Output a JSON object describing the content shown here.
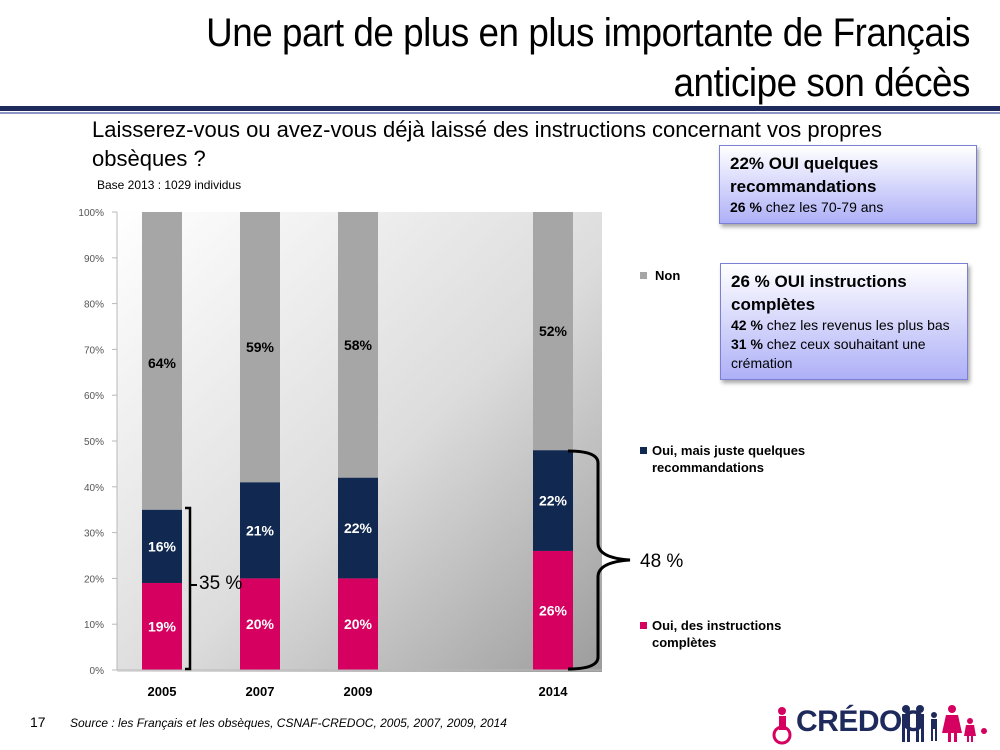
{
  "title": "Une part de plus en plus importante de Français anticipe son décès",
  "question": "Laisserez-vous ou avez-vous déjà laissé des instructions concernant vos propres obsèques ?",
  "base": "Base 2013 : 1029 individus",
  "callout1": {
    "head": "22% OUI quelques recommandations",
    "line1_bold": "26 %",
    "line1_rest": " chez les 70-79 ans"
  },
  "callout2": {
    "head": "26 % OUI instructions complètes",
    "line1_bold": "42 %",
    "line1_rest": " chez les revenus les plus bas",
    "line2_bold": "31 %",
    "line2_rest": " chez ceux souhaitant une crémation"
  },
  "bracket_35": "35 %",
  "bracket_48": "48 %",
  "page_number": "17",
  "source": "Source : les Français et les obsèques, CSNAF-CREDOC, 2005, 2007, 2009, 2014",
  "logo_text": "CRÉDOC",
  "colors": {
    "non": "#a6a6a6",
    "reco": "#112850",
    "completes": "#d5005f"
  },
  "chart_data": {
    "type": "bar",
    "stacked": true,
    "categories": [
      "2005",
      "2007",
      "2009",
      "2014"
    ],
    "series": [
      {
        "name": "Oui, des instructions complètes",
        "values": [
          19,
          20,
          20,
          26
        ],
        "labels": [
          "19%",
          "20%",
          "20%",
          "26%"
        ],
        "color": "#d5005f"
      },
      {
        "name": "Oui, mais juste quelques recommandations",
        "values": [
          16,
          21,
          22,
          22
        ],
        "labels": [
          "16%",
          "21%",
          "22%",
          "22%"
        ],
        "color": "#112850"
      },
      {
        "name": "Non",
        "values": [
          64,
          59,
          58,
          52
        ],
        "labels": [
          "64%",
          "59%",
          "58%",
          "52%"
        ],
        "color": "#a6a6a6"
      }
    ],
    "ylim": [
      0,
      100
    ],
    "yticks": [
      "0%",
      "10%",
      "20%",
      "30%",
      "40%",
      "50%",
      "60%",
      "70%",
      "80%",
      "90%",
      "100%"
    ],
    "legend_position": "right"
  }
}
